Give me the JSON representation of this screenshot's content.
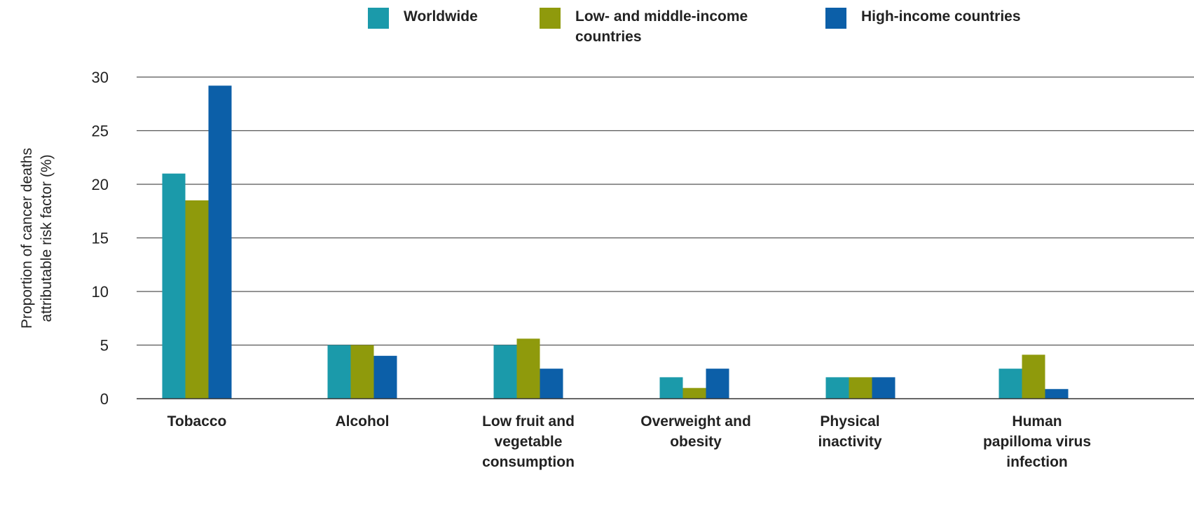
{
  "chart_data": {
    "type": "bar",
    "title": "",
    "xlabel": "",
    "ylabel": "Proportion of cancer deaths attributable risk factor (%)",
    "ylabel_lines": [
      "Proportion of cancer deaths",
      "attributable risk factor (%)"
    ],
    "ylim": [
      0,
      30
    ],
    "yticks": [
      0,
      5,
      10,
      15,
      20,
      25,
      30
    ],
    "grid": true,
    "legend_position": "top",
    "categories": [
      "Tobacco",
      "Alcohol",
      "Low fruit and vegetable consumption",
      "Overweight and obesity",
      "Physical inactivity",
      "Human papilloma virus infection"
    ],
    "category_label_lines": [
      [
        "Tobacco"
      ],
      [
        "Alcohol"
      ],
      [
        "Low fruit and",
        "vegetable",
        "consumption"
      ],
      [
        "Overweight and",
        "obesity"
      ],
      [
        "Physical",
        "inactivity"
      ],
      [
        "Human",
        "papilloma virus",
        "infection"
      ]
    ],
    "series": [
      {
        "name": "Worldwide",
        "name_lines": [
          "Worldwide"
        ],
        "color": "#1b9aaa",
        "values": [
          21,
          5,
          5,
          2,
          2,
          2.8
        ]
      },
      {
        "name": "Low- and middle-income countries",
        "name_lines": [
          "Low- and middle-income",
          "countries"
        ],
        "color": "#8f9a0c",
        "values": [
          18.5,
          5,
          5.6,
          1,
          2,
          4.1
        ]
      },
      {
        "name": "High-income countries",
        "name_lines": [
          "High-income countries"
        ],
        "color": "#0c5fa8",
        "values": [
          29.2,
          4,
          2.8,
          2.8,
          2,
          0.9
        ]
      }
    ]
  }
}
